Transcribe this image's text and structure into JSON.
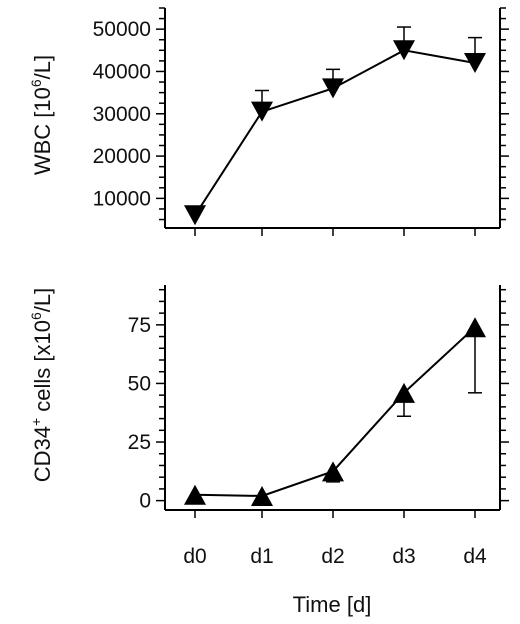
{
  "chart_data": [
    {
      "type": "line",
      "ylabel_pre": "WBC [10",
      "ylabel_sup": "6",
      "ylabel_post": "/L]",
      "categories": [
        "d0",
        "d1",
        "d2",
        "d3",
        "d4"
      ],
      "yticks": [
        10000,
        20000,
        30000,
        40000,
        50000
      ],
      "ylim": [
        3000,
        55000
      ],
      "marker": "triangle-down",
      "series": [
        {
          "values": [
            6000,
            30500,
            36000,
            45000,
            42000
          ],
          "error_upper": [
            6000,
            35500,
            40500,
            50500,
            48000
          ]
        }
      ]
    },
    {
      "type": "line",
      "ylabel_pre": "CD34",
      "ylabel_sup1": "+",
      "ylabel_mid": " cells [x10",
      "ylabel_sup2": "6",
      "ylabel_post": "/L]",
      "xlabel": "Time [d]",
      "categories": [
        "d0",
        "d1",
        "d2",
        "d3",
        "d4"
      ],
      "yticks": [
        0,
        25,
        50,
        75
      ],
      "ylim": [
        -4,
        92
      ],
      "marker": "triangle-up",
      "series": [
        {
          "values": [
            2.5,
            2,
            12.5,
            46,
            74
          ],
          "error_lower": [
            2.5,
            2,
            8,
            36,
            46
          ]
        }
      ]
    }
  ]
}
